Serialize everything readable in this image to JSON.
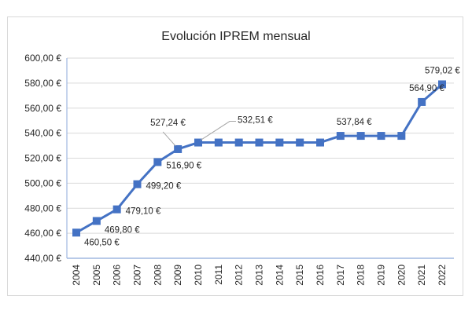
{
  "chart_data": {
    "type": "line",
    "title": "Evolución IPREM mensual",
    "xlabel": "",
    "ylabel": "",
    "categories": [
      "2004",
      "2005",
      "2006",
      "2007",
      "2008",
      "2009",
      "2010",
      "2011",
      "2012",
      "2013",
      "2014",
      "2015",
      "2016",
      "2017",
      "2018",
      "2019",
      "2020",
      "2021",
      "2022"
    ],
    "values": [
      460.5,
      469.8,
      479.1,
      499.2,
      516.9,
      527.24,
      532.51,
      532.51,
      532.51,
      532.51,
      532.51,
      532.51,
      532.51,
      537.84,
      537.84,
      537.84,
      537.84,
      564.9,
      579.02
    ],
    "data_labels": {
      "0": "460,50 €",
      "1": "469,80 €",
      "2": "479,10 €",
      "3": "499,20 €",
      "4": "516,90 €",
      "5": "527,24 €",
      "6": "532,51 €",
      "13": "537,84 €",
      "17": "564,90 €",
      "18": "579,02 €"
    },
    "ylim": [
      440,
      600
    ],
    "yticks": [
      "440,00 €",
      "460,00 €",
      "480,00 €",
      "500,00 €",
      "520,00 €",
      "540,00 €",
      "560,00 €",
      "580,00 €",
      "600,00 €"
    ],
    "grid": true,
    "marker": "square",
    "color": "#4472c4"
  }
}
